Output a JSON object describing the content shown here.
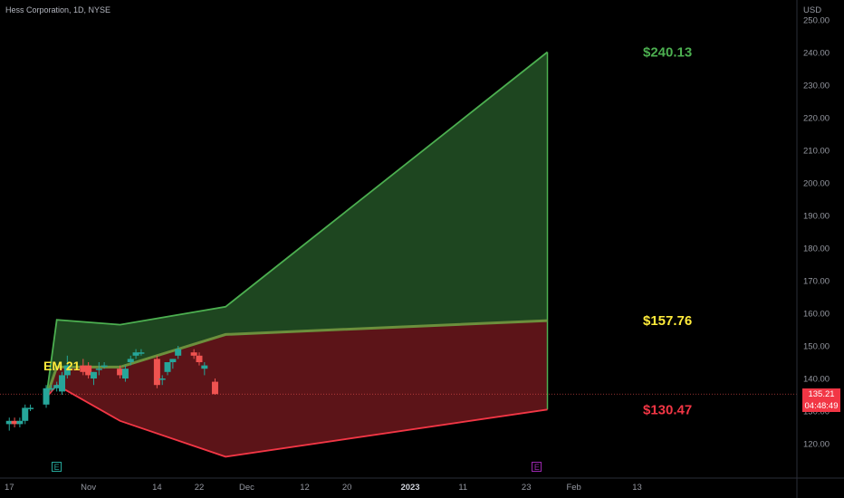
{
  "title": "Hess Corporation, 1D, NYSE",
  "currency": "USD",
  "last_price": {
    "price": "135.21",
    "countdown": "04:48:49"
  },
  "colors": {
    "bg": "#000000",
    "up": "#26a69a",
    "down": "#ef5350",
    "upper_fill": "#1e4620",
    "lower_fill": "#5c1418",
    "upper_line": "#4caf50",
    "lower_line": "#f23645",
    "mid_line": "#6c8f3c",
    "em_label": "#ffeb3b",
    "axis_text": "#9598a1",
    "earnings_e": "#26a69a",
    "earnings_future": "#9c27b0"
  },
  "events": [
    {
      "name": "earnings",
      "label": "E",
      "date": "Oct 26"
    },
    {
      "name": "earnings-upcoming",
      "label": "E",
      "date": "Jan 25"
    }
  ],
  "chart_data": {
    "type": "candlestick",
    "title": "Hess Corporation, 1D, NYSE",
    "ylabel": "USD",
    "ylim": [
      113,
      253
    ],
    "y_ticks": [
      "250.00",
      "240.00",
      "230.00",
      "220.00",
      "210.00",
      "200.00",
      "190.00",
      "180.00",
      "170.00",
      "160.00",
      "150.00",
      "140.00",
      "130.00",
      "120.00"
    ],
    "x_tick_labels": [
      {
        "label": "17",
        "date": "Oct 17"
      },
      {
        "label": "Nov",
        "date": "Nov 1"
      },
      {
        "label": "14",
        "date": "Nov 14"
      },
      {
        "label": "22",
        "date": "Nov 22"
      },
      {
        "label": "Dec",
        "date": "Dec 1"
      },
      {
        "label": "12",
        "date": "Dec 12"
      },
      {
        "label": "20",
        "date": "Dec 20"
      },
      {
        "label": "2023",
        "date": "Jan 1",
        "bold": true
      },
      {
        "label": "11",
        "date": "Jan 11"
      },
      {
        "label": "23",
        "date": "Jan 23"
      },
      {
        "label": "Feb",
        "date": "Feb 1"
      },
      {
        "label": "13",
        "date": "Feb 13"
      }
    ],
    "candles": [
      {
        "date": "Oct 14",
        "o": 125,
        "h": 132,
        "l": 123,
        "c": 131
      },
      {
        "date": "Oct 17",
        "o": 126,
        "h": 128,
        "l": 124,
        "c": 127
      },
      {
        "date": "Oct 18",
        "o": 127,
        "h": 128,
        "l": 125,
        "c": 126
      },
      {
        "date": "Oct 19",
        "o": 126,
        "h": 128,
        "l": 125,
        "c": 127
      },
      {
        "date": "Oct 20",
        "o": 127,
        "h": 132,
        "l": 126,
        "c": 131
      },
      {
        "date": "Oct 21",
        "o": 131,
        "h": 132,
        "l": 130,
        "c": 131
      },
      {
        "date": "Oct 24",
        "o": 132,
        "h": 138,
        "l": 131,
        "c": 137
      },
      {
        "date": "Oct 25",
        "o": 137,
        "h": 138,
        "l": 136,
        "c": 137
      },
      {
        "date": "Oct 26",
        "o": 137,
        "h": 139,
        "l": 136,
        "c": 138
      },
      {
        "date": "Oct 27",
        "o": 136,
        "h": 142,
        "l": 135,
        "c": 141
      },
      {
        "date": "Oct 28",
        "o": 141,
        "h": 147,
        "l": 140,
        "c": 144
      },
      {
        "date": "Oct 31",
        "o": 144,
        "h": 146,
        "l": 141,
        "c": 142
      },
      {
        "date": "Nov 1",
        "o": 144,
        "h": 145,
        "l": 140,
        "c": 141
      },
      {
        "date": "Nov 2",
        "o": 140,
        "h": 142,
        "l": 138,
        "c": 142
      },
      {
        "date": "Nov 3",
        "o": 143,
        "h": 145,
        "l": 141,
        "c": 143
      },
      {
        "date": "Nov 4",
        "o": 144,
        "h": 145,
        "l": 143,
        "c": 144
      },
      {
        "date": "Nov 7",
        "o": 143,
        "h": 144,
        "l": 140,
        "c": 141
      },
      {
        "date": "Nov 8",
        "o": 140,
        "h": 144,
        "l": 139,
        "c": 143
      },
      {
        "date": "Nov 9",
        "o": 145,
        "h": 147,
        "l": 144,
        "c": 146
      },
      {
        "date": "Nov 10",
        "o": 147,
        "h": 149,
        "l": 146,
        "c": 148
      },
      {
        "date": "Nov 11",
        "o": 148,
        "h": 149,
        "l": 147,
        "c": 148
      },
      {
        "date": "Nov 14",
        "o": 146,
        "h": 147,
        "l": 137,
        "c": 138
      },
      {
        "date": "Nov 15",
        "o": 140,
        "h": 141,
        "l": 138,
        "c": 140
      },
      {
        "date": "Nov 16",
        "o": 142,
        "h": 145,
        "l": 141,
        "c": 145
      },
      {
        "date": "Nov 17",
        "o": 145,
        "h": 146,
        "l": 143,
        "c": 146
      },
      {
        "date": "Nov 18",
        "o": 147,
        "h": 150,
        "l": 146,
        "c": 149
      },
      {
        "date": "Nov 21",
        "o": 148,
        "h": 149,
        "l": 146,
        "c": 147
      },
      {
        "date": "Nov 22",
        "o": 147,
        "h": 148,
        "l": 144,
        "c": 145
      },
      {
        "date": "Nov 23",
        "o": 143,
        "h": 145,
        "l": 141,
        "c": 144
      },
      {
        "date": "Nov 25",
        "o": 139,
        "h": 140,
        "l": 135,
        "c": 135.21
      }
    ],
    "expected_move": {
      "label": "EM 21",
      "upper": [
        {
          "date": "Oct 24",
          "y": 134
        },
        {
          "date": "Oct 26",
          "y": 158
        },
        {
          "date": "Nov 7",
          "y": 156.5
        },
        {
          "date": "Nov 27",
          "y": 162
        },
        {
          "date": "Jan 27",
          "y": 240.13
        }
      ],
      "mid": [
        {
          "date": "Oct 24",
          "y": 134
        },
        {
          "date": "Oct 26",
          "y": 143.5
        },
        {
          "date": "Nov 7",
          "y": 143.5
        },
        {
          "date": "Nov 27",
          "y": 153.5
        },
        {
          "date": "Jan 27",
          "y": 157.76
        }
      ],
      "lower": [
        {
          "date": "Oct 24",
          "y": 134
        },
        {
          "date": "Oct 26",
          "y": 138
        },
        {
          "date": "Nov 7",
          "y": 127
        },
        {
          "date": "Nov 27",
          "y": 116
        },
        {
          "date": "Jan 27",
          "y": 130.47
        }
      ],
      "end_labels": [
        {
          "text": "$240.13",
          "value": 240.13,
          "color": "#4caf50"
        },
        {
          "text": "$157.76",
          "value": 157.76,
          "color": "#ffeb3b"
        },
        {
          "text": "$130.47",
          "value": 130.47,
          "color": "#f23645"
        }
      ]
    }
  }
}
